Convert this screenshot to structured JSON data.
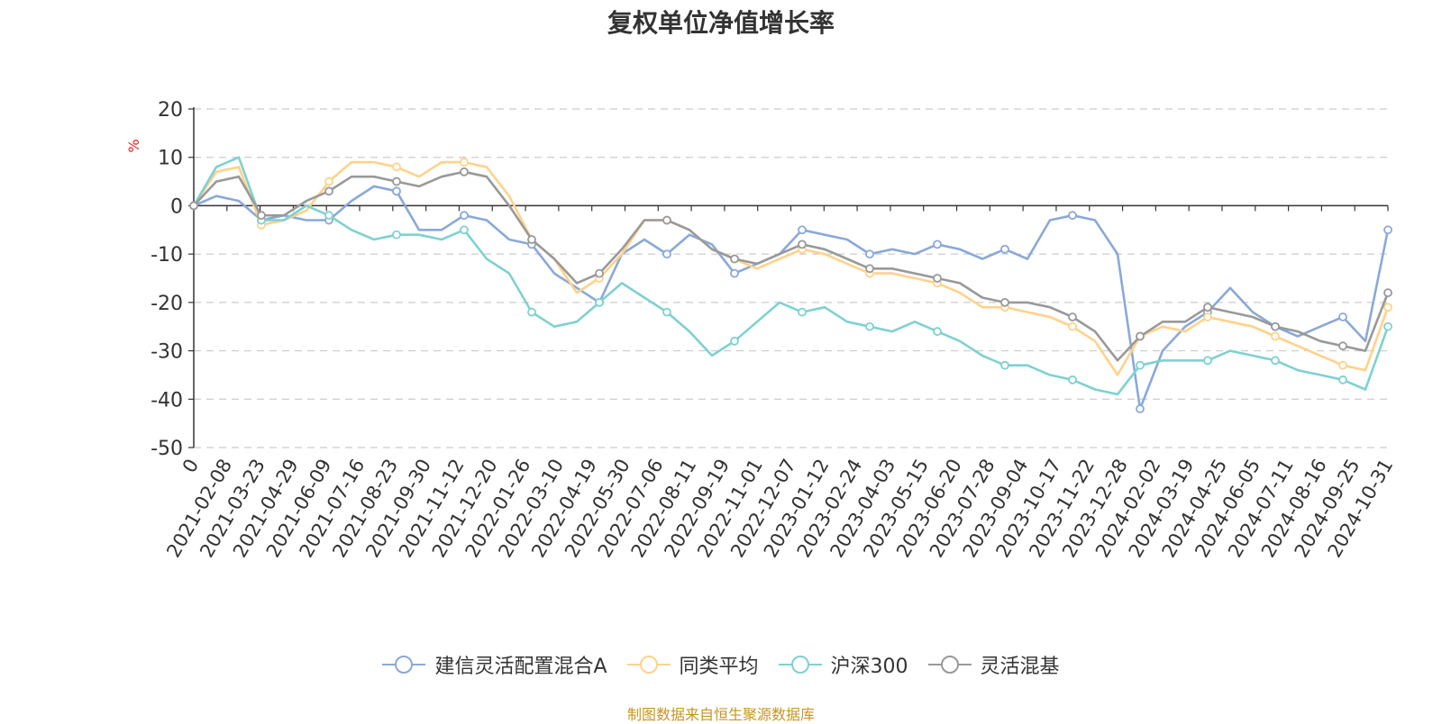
{
  "chart_data": {
    "type": "line",
    "title": "复权单位净值增长率",
    "ylabel": "%",
    "ylim": [
      -50,
      20
    ],
    "yticks": [
      20,
      10,
      0,
      -10,
      -20,
      -30,
      -40,
      -50
    ],
    "grid": true,
    "legend_position": "bottom",
    "xtick_labels": [
      "0",
      "2021-02-08",
      "2021-03-23",
      "2021-04-29",
      "2021-06-09",
      "2021-07-16",
      "2021-08-23",
      "2021-09-30",
      "2021-11-12",
      "2021-12-20",
      "2022-01-26",
      "2022-03-10",
      "2022-04-19",
      "2022-05-30",
      "2022-07-06",
      "2022-08-11",
      "2022-09-19",
      "2022-11-01",
      "2022-12-07",
      "2023-01-12",
      "2023-02-24",
      "2023-04-03",
      "2023-05-15",
      "2023-06-20",
      "2023-07-28",
      "2023-09-04",
      "2023-10-17",
      "2023-11-22",
      "2023-12-28",
      "2024-02-02",
      "2024-03-19",
      "2024-04-25",
      "2024-06-05",
      "2024-07-11",
      "2024-08-16",
      "2024-09-25",
      "2024-10-31"
    ],
    "series": [
      {
        "name": "建信灵活配置混合A",
        "color": "#8aa9d8",
        "values": [
          0,
          2,
          1,
          -3,
          -2,
          -3,
          -3,
          1,
          4,
          3,
          -5,
          -5,
          -2,
          -3,
          -7,
          -8,
          -14,
          -17,
          -20,
          -10,
          -7,
          -10,
          -6,
          -8,
          -14,
          -12,
          -10,
          -5,
          -6,
          -7,
          -10,
          -9,
          -10,
          -8,
          -9,
          -11,
          -9,
          -11,
          -3,
          -2,
          -3,
          -10,
          -42,
          -30,
          -25,
          -22,
          -17,
          -22,
          -25,
          -27,
          -25,
          -23,
          -28,
          -5
        ]
      },
      {
        "name": "同类平均",
        "color": "#ffd28a",
        "values": [
          0,
          7,
          8,
          -4,
          -3,
          -1,
          5,
          9,
          9,
          8,
          6,
          9,
          9,
          8,
          2,
          -7,
          -11,
          -18,
          -15,
          -10,
          -3,
          -3,
          -5,
          -9,
          -11,
          -13,
          -11,
          -9,
          -10,
          -12,
          -14,
          -14,
          -15,
          -16,
          -18,
          -21,
          -21,
          -22,
          -23,
          -25,
          -28,
          -35,
          -27,
          -25,
          -26,
          -23,
          -24,
          -25,
          -27,
          -29,
          -31,
          -33,
          -34,
          -21
        ]
      },
      {
        "name": "沪深300",
        "color": "#7fd1d1",
        "values": [
          0,
          8,
          10,
          -3,
          -3,
          0,
          -2,
          -5,
          -7,
          -6,
          -6,
          -7,
          -5,
          -11,
          -14,
          -22,
          -25,
          -24,
          -20,
          -16,
          -19,
          -22,
          -26,
          -31,
          -28,
          -24,
          -20,
          -22,
          -21,
          -24,
          -25,
          -26,
          -24,
          -26,
          -28,
          -31,
          -33,
          -33,
          -35,
          -36,
          -38,
          -39,
          -33,
          -32,
          -32,
          -32,
          -30,
          -31,
          -32,
          -34,
          -35,
          -36,
          -38,
          -25
        ]
      },
      {
        "name": "灵活混基",
        "color": "#999999",
        "values": [
          0,
          5,
          6,
          -2,
          -2,
          1,
          3,
          6,
          6,
          5,
          4,
          6,
          7,
          6,
          0,
          -7,
          -11,
          -16,
          -14,
          -9,
          -3,
          -3,
          -5,
          -9,
          -11,
          -12,
          -10,
          -8,
          -9,
          -11,
          -13,
          -13,
          -14,
          -15,
          -16,
          -19,
          -20,
          -20,
          -21,
          -23,
          -26,
          -32,
          -27,
          -24,
          -24,
          -21,
          -22,
          -23,
          -25,
          -26,
          -28,
          -29,
          -30,
          -18
        ]
      }
    ]
  },
  "source": "制图数据来自恒生聚源数据库"
}
